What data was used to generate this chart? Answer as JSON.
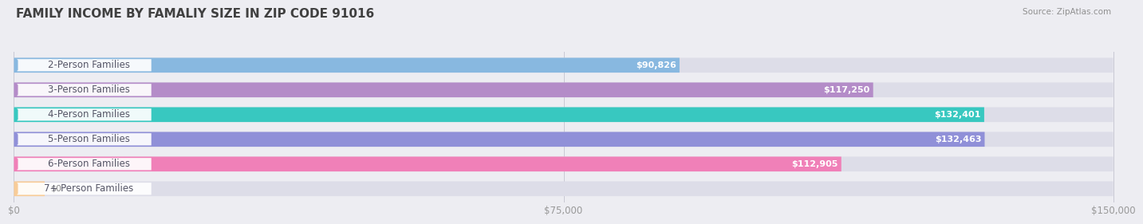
{
  "title": "FAMILY INCOME BY FAMALIY SIZE IN ZIP CODE 91016",
  "source": "Source: ZipAtlas.com",
  "categories": [
    "2-Person Families",
    "3-Person Families",
    "4-Person Families",
    "5-Person Families",
    "6-Person Families",
    "7+ Person Families"
  ],
  "values": [
    90826,
    117250,
    132401,
    132463,
    112905,
    0
  ],
  "bar_colors": [
    "#88b8e0",
    "#b48cc8",
    "#38c8c0",
    "#9090d8",
    "#f080b8",
    "#f8cc98"
  ],
  "value_labels": [
    "$90,826",
    "$117,250",
    "$132,401",
    "$132,463",
    "$112,905",
    "$0"
  ],
  "xlim": [
    0,
    150000
  ],
  "xtick_values": [
    0,
    75000,
    150000
  ],
  "xtick_labels": [
    "$0",
    "$75,000",
    "$150,000"
  ],
  "background_color": "#ededf2",
  "bar_bg_color": "#dddde8",
  "title_fontsize": 11,
  "label_fontsize": 8.5,
  "value_fontsize": 8.0,
  "title_color": "#404040",
  "source_color": "#909090",
  "label_text_color": "#555566"
}
